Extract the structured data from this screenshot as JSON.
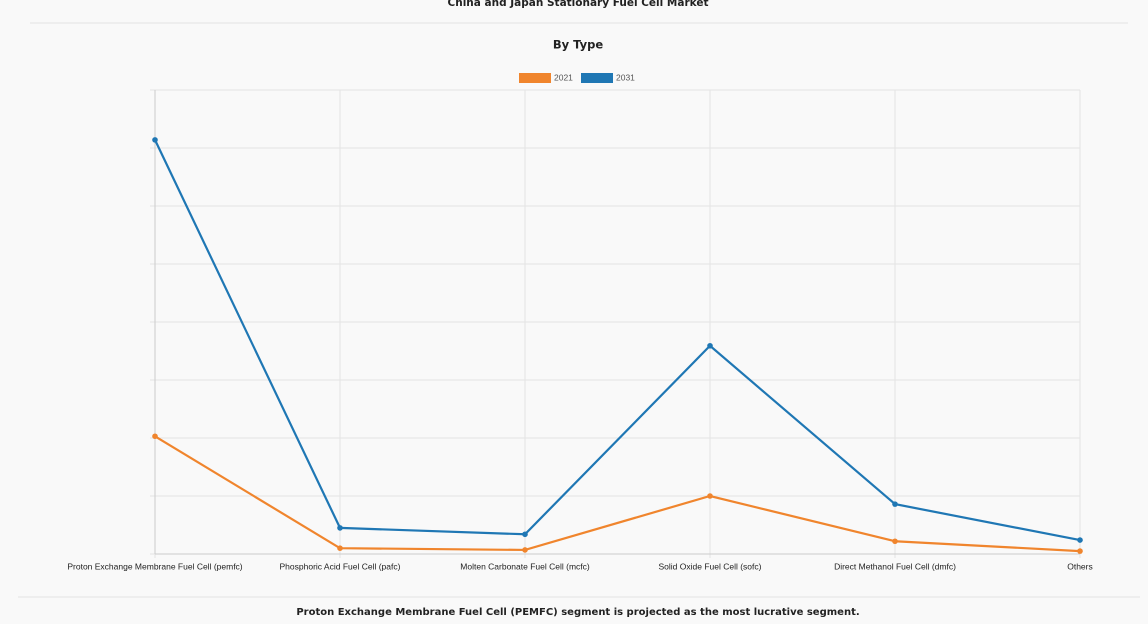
{
  "chart_data": {
    "type": "line",
    "title": "China and Japan Stationary Fuel Cell Market",
    "subtitle": "By Type",
    "footnote": "Proton Exchange Membrane Fuel Cell (PEMFC) segment is projected as the most lucrative segment.",
    "categories": [
      "Proton Exchange Membrane Fuel Cell (pemfc)",
      "Phosphoric Acid Fuel Cell (pafc)",
      "Molten Carbonate Fuel Cell (mcfc)",
      "Solid Oxide Fuel Cell (sofc)",
      "Direct Methanol Fuel Cell (dmfc)",
      "Others"
    ],
    "series": [
      {
        "name": "2021",
        "color": "#f0852d",
        "values": [
          2.03,
          0.1,
          0.07,
          1.0,
          0.22,
          0.05
        ]
      },
      {
        "name": "2031",
        "color": "#1f77b4",
        "values": [
          7.14,
          0.45,
          0.34,
          3.59,
          0.86,
          0.24
        ]
      }
    ],
    "ylim": [
      0,
      8
    ],
    "yticks": [
      0,
      1,
      2,
      3,
      4,
      5,
      6,
      7,
      8
    ],
    "grid": true
  }
}
